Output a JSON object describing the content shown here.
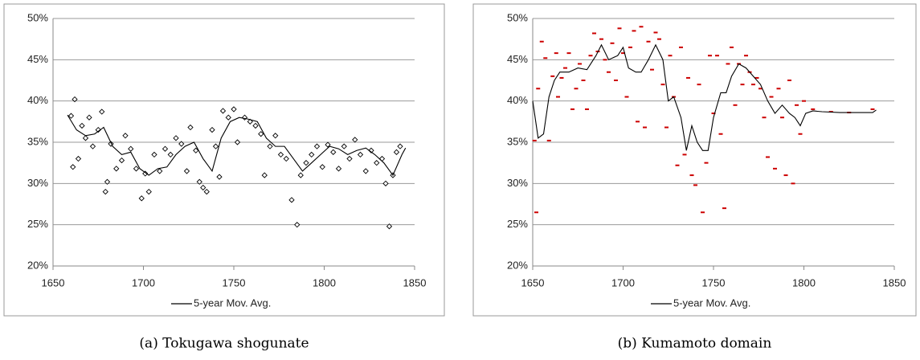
{
  "chart_data": [
    {
      "type": "scatter",
      "title": "(a) Tokugawa shogunate",
      "xlim": [
        1650,
        1850
      ],
      "xticks": [
        1650,
        1700,
        1750,
        1800,
        1850
      ],
      "ylim": [
        20,
        50
      ],
      "yticks": [
        {
          "value": 20,
          "label": "20%"
        },
        {
          "value": 25,
          "label": "25%"
        },
        {
          "value": 30,
          "label": "30%"
        },
        {
          "value": 35,
          "label": "35%"
        },
        {
          "value": 40,
          "label": "40%"
        },
        {
          "value": 45,
          "label": "45%"
        },
        {
          "value": 50,
          "label": "50%"
        }
      ],
      "grid": true,
      "legend": "bottom",
      "points": {
        "marker": "diamond",
        "color": "#000000",
        "x": [
          1660,
          1661,
          1662,
          1664,
          1666,
          1668,
          1670,
          1672,
          1675,
          1677,
          1679,
          1680,
          1682,
          1685,
          1688,
          1690,
          1693,
          1696,
          1699,
          1701,
          1703,
          1706,
          1709,
          1712,
          1715,
          1718,
          1721,
          1724,
          1726,
          1729,
          1731,
          1733,
          1735,
          1738,
          1740,
          1742,
          1744,
          1747,
          1750,
          1752,
          1756,
          1759,
          1762,
          1765,
          1767,
          1770,
          1773,
          1776,
          1779,
          1782,
          1785,
          1787,
          1790,
          1793,
          1796,
          1799,
          1802,
          1805,
          1808,
          1811,
          1814,
          1817,
          1820,
          1823,
          1826,
          1829,
          1832,
          1834,
          1836,
          1838,
          1840,
          1842
        ],
        "values": [
          38.2,
          32,
          40.2,
          33,
          37,
          35.5,
          38,
          34.5,
          36.5,
          38.7,
          29,
          30.2,
          34.8,
          31.8,
          32.8,
          35.8,
          34.2,
          31.8,
          28.2,
          31.2,
          29,
          33.5,
          31.5,
          34.2,
          33.5,
          35.5,
          34.8,
          31.5,
          36.8,
          34,
          30.2,
          29.5,
          29,
          36.5,
          34.5,
          30.8,
          38.8,
          38,
          39,
          35,
          38,
          37.5,
          37,
          36,
          31,
          34.5,
          35.8,
          33.5,
          33,
          28,
          25,
          31,
          32.5,
          33.5,
          34.5,
          32,
          34.7,
          33.8,
          31.8,
          34.5,
          33,
          35.3,
          33.5,
          31.5,
          34,
          32.5,
          33,
          30,
          24.8,
          31,
          33.8,
          34.5
        ]
      },
      "line": {
        "name": "5-year Mov. Avg.",
        "color": "#000000",
        "x": [
          1658,
          1663,
          1668,
          1673,
          1678,
          1683,
          1688,
          1693,
          1698,
          1703,
          1708,
          1713,
          1718,
          1723,
          1728,
          1733,
          1738,
          1743,
          1748,
          1753,
          1758,
          1763,
          1768,
          1773,
          1778,
          1783,
          1788,
          1793,
          1798,
          1803,
          1808,
          1813,
          1818,
          1823,
          1828,
          1833,
          1838,
          1843,
          1845
        ],
        "values": [
          38.3,
          36.5,
          35.8,
          36,
          36.8,
          34.5,
          33.5,
          33.8,
          31.8,
          31,
          31.8,
          32,
          33.5,
          34.5,
          35,
          33,
          31.5,
          35.5,
          37.5,
          38,
          37.8,
          37.5,
          35.5,
          34.5,
          34.5,
          33,
          31.5,
          32.5,
          33.5,
          34.5,
          34.2,
          33.5,
          34,
          34.3,
          33.5,
          32.5,
          31,
          33.5,
          34.3
        ]
      }
    },
    {
      "type": "scatter",
      "title": "(b) Kumamoto domain",
      "xlim": [
        1650,
        1850
      ],
      "xticks": [
        1650,
        1700,
        1750,
        1800,
        1850
      ],
      "ylim": [
        20,
        50
      ],
      "yticks": [
        {
          "value": 20,
          "label": "20%"
        },
        {
          "value": 25,
          "label": "25%"
        },
        {
          "value": 30,
          "label": "30%"
        },
        {
          "value": 35,
          "label": "35%"
        },
        {
          "value": 40,
          "label": "40%"
        },
        {
          "value": 45,
          "label": "45%"
        },
        {
          "value": 50,
          "label": "50%"
        }
      ],
      "grid": true,
      "legend": "bottom",
      "points": {
        "marker": "dash",
        "color": "#cc0000",
        "x": [
          1651,
          1652,
          1653,
          1655,
          1657,
          1659,
          1661,
          1663,
          1664,
          1666,
          1668,
          1670,
          1672,
          1674,
          1676,
          1678,
          1680,
          1682,
          1684,
          1686,
          1688,
          1690,
          1692,
          1694,
          1696,
          1698,
          1700,
          1702,
          1704,
          1706,
          1708,
          1710,
          1712,
          1714,
          1716,
          1718,
          1720,
          1722,
          1724,
          1726,
          1728,
          1730,
          1732,
          1734,
          1736,
          1738,
          1740,
          1742,
          1744,
          1746,
          1748,
          1750,
          1752,
          1754,
          1756,
          1758,
          1760,
          1762,
          1764,
          1766,
          1768,
          1770,
          1772,
          1774,
          1776,
          1778,
          1780,
          1782,
          1784,
          1786,
          1788,
          1790,
          1792,
          1794,
          1796,
          1798,
          1800,
          1805,
          1815,
          1825,
          1838
        ],
        "values": [
          35.2,
          26.5,
          41.5,
          47.2,
          45.2,
          35.2,
          43,
          45.8,
          40.5,
          42.8,
          44,
          45.8,
          39,
          41.5,
          44.5,
          42.5,
          39,
          45.5,
          48.2,
          46,
          47.5,
          45,
          43.5,
          47,
          42.5,
          48.8,
          45.8,
          40.5,
          46.5,
          48.5,
          37.5,
          49,
          36.8,
          47.2,
          43.8,
          48.3,
          47.5,
          42,
          36.8,
          45.5,
          40.5,
          32.2,
          46.5,
          33.5,
          42.8,
          31,
          29.8,
          42,
          26.5,
          32.5,
          45.5,
          38.5,
          45.5,
          36,
          27,
          44.5,
          46.5,
          39.5,
          44.5,
          42,
          45.5,
          43.5,
          42,
          42.8,
          41.5,
          38,
          33.2,
          40.5,
          31.8,
          41.5,
          38,
          31,
          42.5,
          30,
          39.5,
          36,
          40,
          39,
          38.7,
          38.6,
          39
        ]
      },
      "line": {
        "name": "5-year Mov. Avg.",
        "color": "#000000",
        "x": [
          1650,
          1653,
          1656,
          1659,
          1662,
          1665,
          1670,
          1675,
          1680,
          1685,
          1688,
          1692,
          1697,
          1700,
          1703,
          1707,
          1710,
          1714,
          1718,
          1722,
          1725,
          1728,
          1732,
          1735,
          1738,
          1741,
          1744,
          1747,
          1750,
          1754,
          1757,
          1760,
          1764,
          1768,
          1772,
          1776,
          1780,
          1784,
          1788,
          1792,
          1795,
          1798,
          1801,
          1805,
          1810,
          1820,
          1830,
          1838,
          1840
        ],
        "values": [
          40,
          35.5,
          36,
          40.5,
          42.5,
          43.5,
          43.5,
          44,
          43.8,
          45.5,
          46.8,
          45,
          45.5,
          46.5,
          44,
          43.5,
          43.5,
          45,
          46.8,
          45,
          40,
          40.5,
          38,
          34,
          37,
          35,
          34,
          34,
          38,
          41,
          41,
          43,
          44.5,
          44,
          43,
          42,
          40,
          38.5,
          39.5,
          38.5,
          38,
          37,
          38.5,
          38.8,
          38.7,
          38.6,
          38.6,
          38.6,
          38.9
        ]
      }
    }
  ]
}
